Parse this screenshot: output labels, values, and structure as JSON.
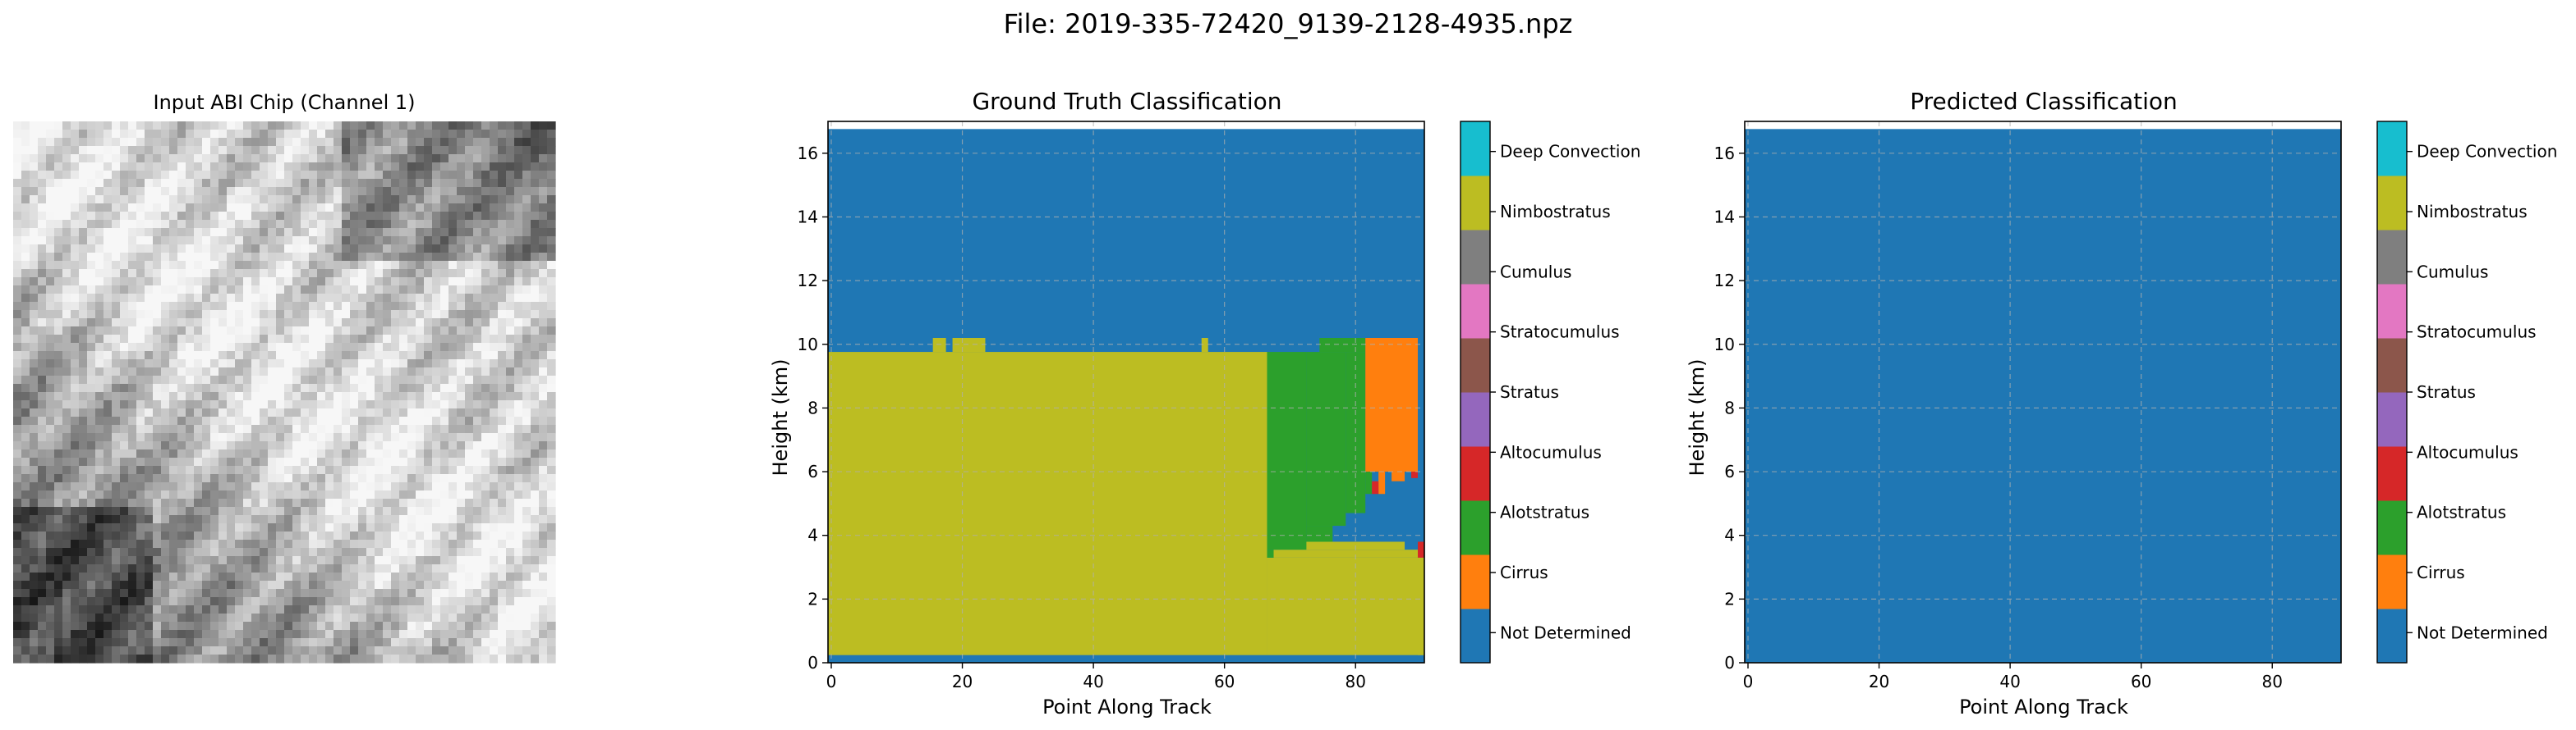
{
  "figure_title": "File: 2019-335-72420_9139-2128-4935.npz",
  "chart_data": [
    {
      "type": "image",
      "title": "Input ABI Chip (Channel 1)",
      "colormap": "gray"
    },
    {
      "type": "heatmap",
      "title": "Ground Truth Classification",
      "xlabel": "Point Along Track",
      "ylabel": "Height (km)",
      "xlim": [
        -0.5,
        90.5
      ],
      "ylim": [
        0,
        17
      ],
      "x_ticks": [
        0,
        20,
        40,
        60,
        80
      ],
      "y_ticks": [
        0,
        2,
        4,
        6,
        8,
        10,
        12,
        14,
        16
      ],
      "grid": true,
      "regions": [
        {
          "class": "Nimbostratus",
          "x0": -0.5,
          "x1": 66.5,
          "y0": 0.24,
          "y1": 9.76
        },
        {
          "class": "Nimbostratus",
          "x0": 15.5,
          "x1": 17.5,
          "y0": 9.76,
          "y1": 10.2
        },
        {
          "class": "Nimbostratus",
          "x0": 18.5,
          "x1": 23.5,
          "y0": 9.76,
          "y1": 10.2
        },
        {
          "class": "Nimbostratus",
          "x0": 56.5,
          "x1": 57.5,
          "y0": 9.76,
          "y1": 10.2
        },
        {
          "class": "Nimbostratus",
          "x0": 66.5,
          "x1": 90.5,
          "y0": 0.24,
          "y1": 3.3
        },
        {
          "class": "Nimbostratus",
          "x0": 67.5,
          "x1": 90.5,
          "y0": 3.3,
          "y1": 3.55
        },
        {
          "class": "Nimbostratus",
          "x0": 68.5,
          "x1": 87.5,
          "y0": 3.55,
          "y1": 3.8
        },
        {
          "class": "Nimbostratus",
          "x0": 89.5,
          "x1": 90.5,
          "y0": 0.24,
          "y1": 0.7
        },
        {
          "class": "Alotstratus",
          "x0": 66.5,
          "x1": 72.5,
          "y0": 3.55,
          "y1": 9.76
        },
        {
          "class": "Alotstratus",
          "x0": 66.5,
          "x1": 67.5,
          "y0": 3.3,
          "y1": 3.55
        },
        {
          "class": "Alotstratus",
          "x0": 72.5,
          "x1": 78.5,
          "y0": 4.3,
          "y1": 9.76
        },
        {
          "class": "Alotstratus",
          "x0": 72.5,
          "x1": 76.5,
          "y0": 3.8,
          "y1": 4.3
        },
        {
          "class": "Alotstratus",
          "x0": 78.5,
          "x1": 81.5,
          "y0": 4.7,
          "y1": 9.76
        },
        {
          "class": "Alotstratus",
          "x0": 74.5,
          "x1": 81.5,
          "y0": 9.76,
          "y1": 10.2
        },
        {
          "class": "Alotstratus",
          "x0": 81.5,
          "x1": 82.5,
          "y0": 5.3,
          "y1": 6.0
        },
        {
          "class": "Cirrus",
          "x0": 81.5,
          "x1": 89.5,
          "y0": 6.0,
          "y1": 10.2
        },
        {
          "class": "Cirrus",
          "x0": 83.5,
          "x1": 84.5,
          "y0": 5.3,
          "y1": 6.0
        },
        {
          "class": "Cirrus",
          "x0": 85.5,
          "x1": 87.5,
          "y0": 5.7,
          "y1": 6.0
        },
        {
          "class": "Altocumulus",
          "x0": 82.5,
          "x1": 83.5,
          "y0": 5.3,
          "y1": 5.7
        },
        {
          "class": "Altocumulus",
          "x0": 88.5,
          "x1": 89.5,
          "y0": 5.8,
          "y1": 6.0
        },
        {
          "class": "Altocumulus",
          "x0": 89.5,
          "x1": 90.5,
          "y0": 3.3,
          "y1": 3.8
        }
      ],
      "background_class": "Not Determined",
      "legend": "colorbar-right"
    },
    {
      "type": "heatmap",
      "title": "Predicted Classification",
      "xlabel": "Point Along Track",
      "ylabel": "Height (km)",
      "xlim": [
        -0.5,
        90.5
      ],
      "ylim": [
        0,
        17
      ],
      "x_ticks": [
        0,
        20,
        40,
        60,
        80
      ],
      "y_ticks": [
        0,
        2,
        4,
        6,
        8,
        10,
        12,
        14,
        16
      ],
      "grid": true,
      "regions": [],
      "background_class": "Not Determined",
      "legend": "colorbar-right"
    }
  ],
  "classes": [
    {
      "label": "Not Determined",
      "color": "#1f77b4"
    },
    {
      "label": "Cirrus",
      "color": "#ff7f0e"
    },
    {
      "label": "Alotstratus",
      "color": "#2ca02c"
    },
    {
      "label": "Altocumulus",
      "color": "#d62728"
    },
    {
      "label": "Stratus",
      "color": "#9467bd"
    },
    {
      "label": "Stratocumulus",
      "color": "#8c564b"
    },
    {
      "label": "Cumulus",
      "color": "#e377c2"
    },
    {
      "label": "Cumulus",
      "color": "#7f7f7f"
    },
    {
      "label": "Nimbostratus",
      "color": "#bcbd22"
    },
    {
      "label": "Deep Convection",
      "color": "#17becf"
    }
  ]
}
